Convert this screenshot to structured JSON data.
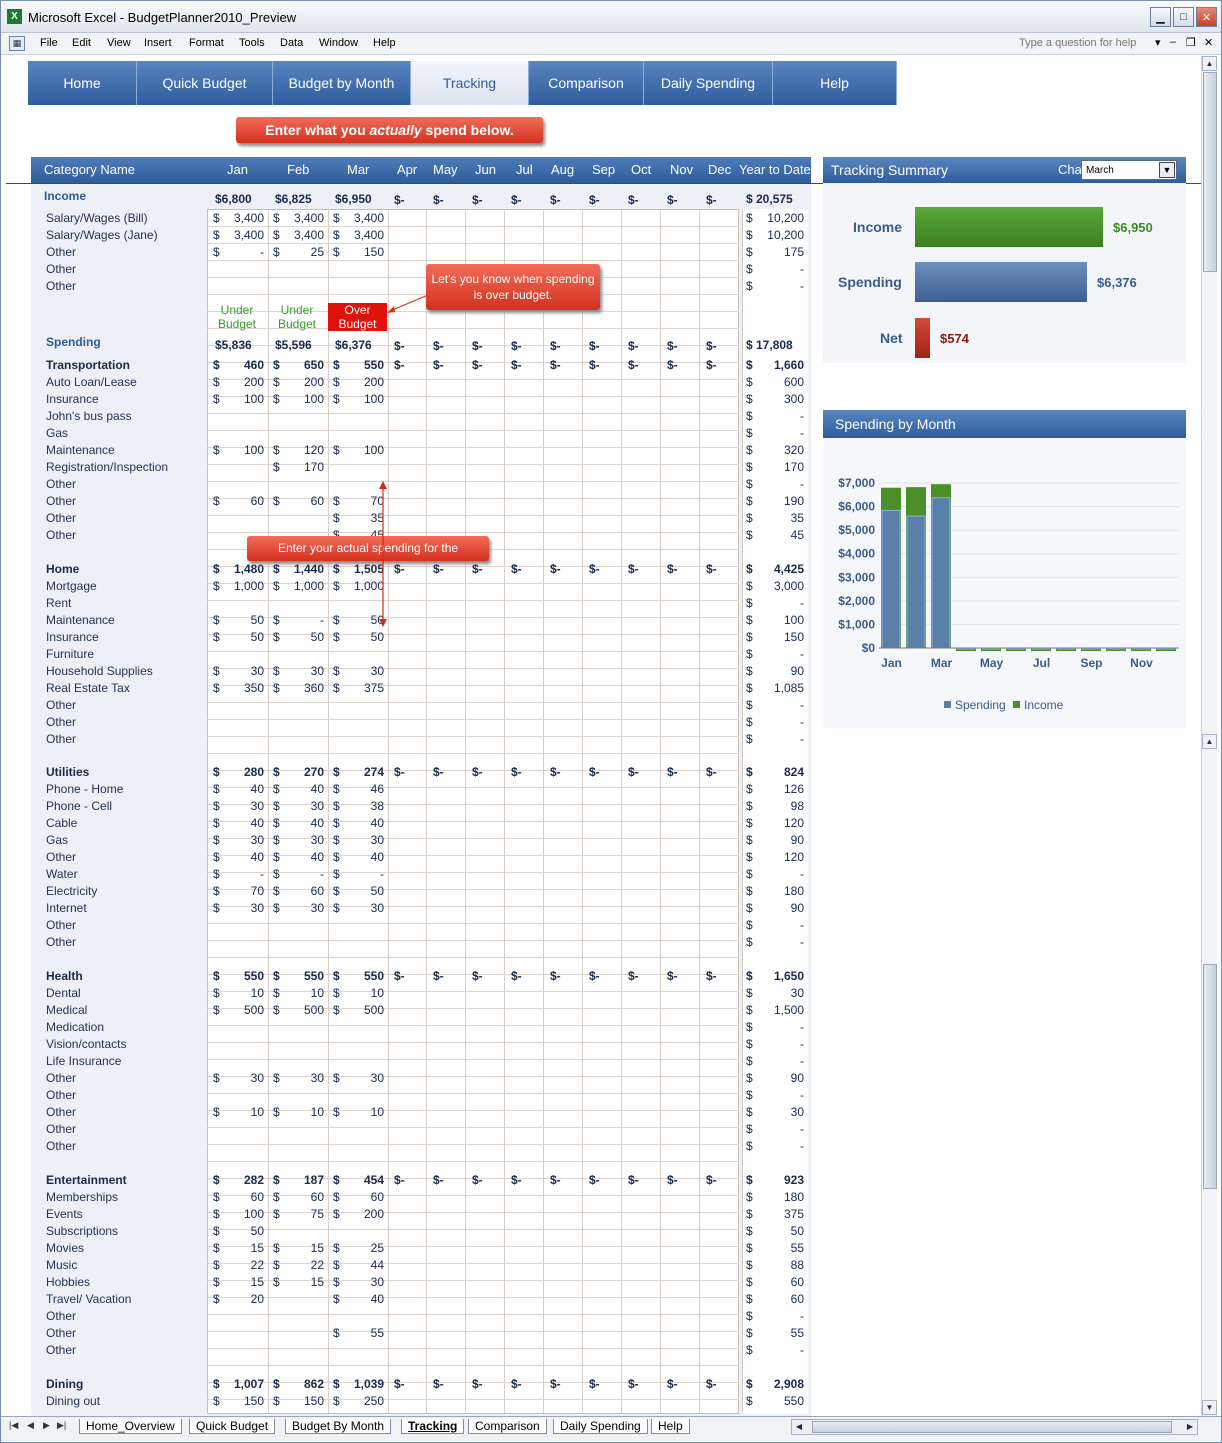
{
  "window": {
    "title": "Microsoft Excel - BudgetPlanner2010_Preview",
    "help_placeholder": "Type a question for help"
  },
  "menu": [
    "File",
    "Edit",
    "View",
    "Insert",
    "Format",
    "Tools",
    "Data",
    "Window",
    "Help"
  ],
  "nav": [
    "Home",
    "Quick Budget",
    "Budget by Month",
    "Tracking",
    "Comparison",
    "Daily Spending",
    "Help"
  ],
  "banner": {
    "pre": "Enter what you ",
    "em": "actually",
    "post": " spend below."
  },
  "callouts": {
    "over_budget": "Let's you know when spending is over budget.",
    "enter_spending": "Enter your actual spending for the"
  },
  "status_labels": {
    "under": "Under Budget",
    "over": "Over Budget"
  },
  "table_header": {
    "category": "Category Name",
    "months": [
      "Jan",
      "Feb",
      "Mar",
      "Apr",
      "May",
      "Jun",
      "Jul",
      "Aug",
      "Sep",
      "Oct",
      "Nov",
      "Dec"
    ],
    "ytd": "Year to Date"
  },
  "income": {
    "title": "Income",
    "totals": [
      "$6,800",
      "$6,825",
      "$6,950"
    ],
    "ytd": "$ 20,575",
    "rows": [
      [
        "Salary/Wages (Bill)",
        "3,400",
        "3,400",
        "3,400",
        "10,200"
      ],
      [
        "Salary/Wages (Jane)",
        "3,400",
        "3,400",
        "3,400",
        "10,200"
      ],
      [
        "Other",
        "-",
        "25",
        "150",
        "175"
      ],
      [
        "Other",
        "",
        "",
        "",
        "-"
      ],
      [
        "Other",
        "",
        "",
        "",
        "-"
      ]
    ]
  },
  "spending": {
    "title": "Spending",
    "totals": [
      "$5,836",
      "$5,596",
      "$6,376"
    ],
    "ytd": "$ 17,808"
  },
  "sections": [
    {
      "name": "Transportation",
      "totals": [
        "460",
        "650",
        "550"
      ],
      "ytd": "1,660",
      "top": 364,
      "rows": [
        [
          "Auto Loan/Lease",
          "200",
          "200",
          "200",
          "600"
        ],
        [
          "Insurance",
          "100",
          "100",
          "100",
          "300"
        ],
        [
          "John's bus pass",
          "",
          "",
          "",
          "-"
        ],
        [
          "Gas",
          "",
          "",
          "",
          "-"
        ],
        [
          "Maintenance",
          "100",
          "120",
          "100",
          "320"
        ],
        [
          "Registration/Inspection",
          "",
          "170",
          "",
          "170"
        ],
        [
          "Other",
          "",
          "",
          "",
          "-"
        ],
        [
          "Other",
          "60",
          "60",
          "70",
          "190"
        ],
        [
          "Other",
          "",
          "",
          "35",
          "35"
        ],
        [
          "Other",
          "",
          "",
          "45",
          "45"
        ]
      ]
    },
    {
      "name": "Home",
      "totals": [
        "1,480",
        "1,440",
        "1,505"
      ],
      "ytd": "4,425",
      "top": 568,
      "rows": [
        [
          "Mortgage",
          "1,000",
          "1,000",
          "1,000",
          "3,000"
        ],
        [
          "Rent",
          "",
          "",
          "",
          "-"
        ],
        [
          "Maintenance",
          "50",
          "-",
          "50",
          "100"
        ],
        [
          "Insurance",
          "50",
          "50",
          "50",
          "150"
        ],
        [
          "Furniture",
          "",
          "",
          "",
          "-"
        ],
        [
          "Household Supplies",
          "30",
          "30",
          "30",
          "90"
        ],
        [
          "Real Estate Tax",
          "350",
          "360",
          "375",
          "1,085"
        ],
        [
          "Other",
          "",
          "",
          "",
          "-"
        ],
        [
          "Other",
          "",
          "",
          "",
          "-"
        ],
        [
          "Other",
          "",
          "",
          "",
          "-"
        ]
      ]
    },
    {
      "name": "Utilities",
      "totals": [
        "280",
        "270",
        "274"
      ],
      "ytd": "824",
      "top": 771,
      "rows": [
        [
          "Phone - Home",
          "40",
          "40",
          "46",
          "126"
        ],
        [
          "Phone - Cell",
          "30",
          "30",
          "38",
          "98"
        ],
        [
          "Cable",
          "40",
          "40",
          "40",
          "120"
        ],
        [
          "Gas",
          "30",
          "30",
          "30",
          "90"
        ],
        [
          "Other",
          "40",
          "40",
          "40",
          "120"
        ],
        [
          "Water",
          "-",
          "-",
          "-",
          "-"
        ],
        [
          "Electricity",
          "70",
          "60",
          "50",
          "180"
        ],
        [
          "Internet",
          "30",
          "30",
          "30",
          "90"
        ],
        [
          "Other",
          "",
          "",
          "",
          "-"
        ],
        [
          "Other",
          "",
          "",
          "",
          "-"
        ]
      ]
    },
    {
      "name": "Health",
      "totals": [
        "550",
        "550",
        "550"
      ],
      "ytd": "1,650",
      "top": 975,
      "rows": [
        [
          "Dental",
          "10",
          "10",
          "10",
          "30"
        ],
        [
          "Medical",
          "500",
          "500",
          "500",
          "1,500"
        ],
        [
          "Medication",
          "",
          "",
          "",
          "-"
        ],
        [
          "Vision/contacts",
          "",
          "",
          "",
          "-"
        ],
        [
          "Life Insurance",
          "",
          "",
          "",
          "-"
        ],
        [
          "Other",
          "30",
          "30",
          "30",
          "90"
        ],
        [
          "Other",
          "",
          "",
          "",
          "-"
        ],
        [
          "Other",
          "10",
          "10",
          "10",
          "30"
        ],
        [
          "Other",
          "",
          "",
          "",
          "-"
        ],
        [
          "Other",
          "",
          "",
          "",
          "-"
        ]
      ]
    },
    {
      "name": "Entertainment",
      "totals": [
        "282",
        "187",
        "454"
      ],
      "ytd": "923",
      "top": 1179,
      "rows": [
        [
          "Memberships",
          "60",
          "60",
          "60",
          "180"
        ],
        [
          "Events",
          "100",
          "75",
          "200",
          "375"
        ],
        [
          "Subscriptions",
          "50",
          "",
          "",
          "50"
        ],
        [
          "Movies",
          "15",
          "15",
          "25",
          "55"
        ],
        [
          "Music",
          "22",
          "22",
          "44",
          "88"
        ],
        [
          "Hobbies",
          "15",
          "15",
          "30",
          "60"
        ],
        [
          "Travel/ Vacation",
          "20",
          "",
          "40",
          "60"
        ],
        [
          "Other",
          "",
          "",
          "",
          "-"
        ],
        [
          "Other",
          "",
          "",
          "55",
          "55"
        ],
        [
          "Other",
          "",
          "",
          "",
          "-"
        ]
      ]
    },
    {
      "name": "Dining",
      "totals": [
        "1,007",
        "862",
        "1,039"
      ],
      "ytd": "2,908",
      "top": 1383,
      "rows": [
        [
          "Dining out",
          "150",
          "150",
          "250",
          "550"
        ]
      ]
    }
  ],
  "summary": {
    "title": "Tracking Summary",
    "chart_label": "Chart:",
    "chart_value": "March",
    "income_label": "Income",
    "income_value": "$6,950",
    "spending_label": "Spending",
    "spending_value": "$6,376",
    "net_label": "Net",
    "net_value": "$574"
  },
  "chart_data": {
    "type": "bar",
    "title": "Spending by Month",
    "categories": [
      "Jan",
      "Feb",
      "Mar",
      "Apr",
      "May",
      "Jun",
      "Jul",
      "Aug",
      "Sep",
      "Oct",
      "Nov",
      "Dec"
    ],
    "series": [
      {
        "name": "Spending",
        "values": [
          5836,
          5596,
          6376,
          0,
          0,
          0,
          0,
          0,
          0,
          0,
          0,
          0
        ]
      },
      {
        "name": "Income",
        "values": [
          6800,
          6825,
          6950,
          0,
          0,
          0,
          0,
          0,
          0,
          0,
          0,
          0
        ]
      }
    ],
    "ylim": [
      0,
      7000
    ],
    "yticks": [
      "$0",
      "$1,000",
      "$2,000",
      "$3,000",
      "$4,000",
      "$5,000",
      "$6,000",
      "$7,000"
    ],
    "xticks": [
      "Jan",
      "Mar",
      "May",
      "Jul",
      "Sep",
      "Nov"
    ],
    "legend": "bottom",
    "colors": {
      "Spending": "#5a7fa8",
      "Income": "#4a8f2a"
    }
  },
  "sheet_tabs": [
    "Home_Overview",
    "Quick Budget",
    "Budget By Month",
    "Tracking",
    "Comparison",
    "Daily Spending",
    "Help"
  ]
}
